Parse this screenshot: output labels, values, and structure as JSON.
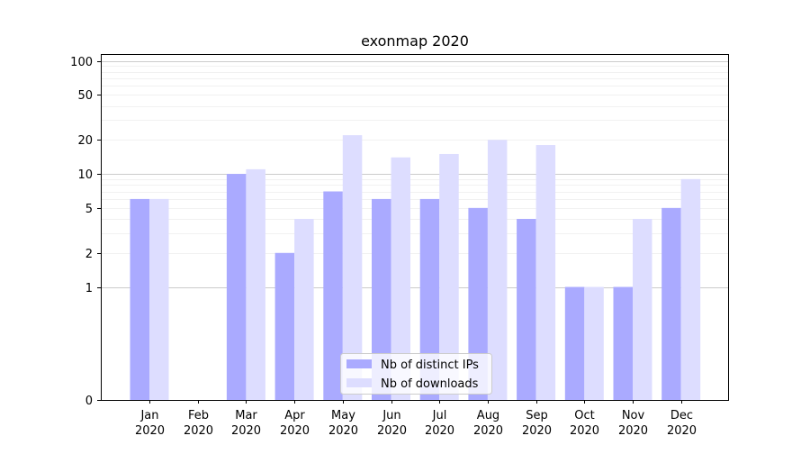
{
  "chart_data": {
    "type": "bar",
    "title": "exonmap 2020",
    "xlabel": "",
    "ylabel": "",
    "scale": "symlog",
    "ylim": [
      0,
      115
    ],
    "grid": true,
    "legend_position": "lower-center",
    "categories": [
      {
        "month": "Jan",
        "year": "2020"
      },
      {
        "month": "Feb",
        "year": "2020"
      },
      {
        "month": "Mar",
        "year": "2020"
      },
      {
        "month": "Apr",
        "year": "2020"
      },
      {
        "month": "May",
        "year": "2020"
      },
      {
        "month": "Jun",
        "year": "2020"
      },
      {
        "month": "Jul",
        "year": "2020"
      },
      {
        "month": "Aug",
        "year": "2020"
      },
      {
        "month": "Sep",
        "year": "2020"
      },
      {
        "month": "Oct",
        "year": "2020"
      },
      {
        "month": "Nov",
        "year": "2020"
      },
      {
        "month": "Dec",
        "year": "2020"
      }
    ],
    "yticks": [
      {
        "value": 0,
        "label": "0"
      },
      {
        "value": 1,
        "label": "1"
      },
      {
        "value": 2,
        "label": "2"
      },
      {
        "value": 5,
        "label": "5"
      },
      {
        "value": 10,
        "label": "10"
      },
      {
        "value": 20,
        "label": "20"
      },
      {
        "value": 50,
        "label": "50"
      },
      {
        "value": 100,
        "label": "100"
      }
    ],
    "series": [
      {
        "name": "Nb of distinct IPs",
        "color": "#aaaaff",
        "values": [
          6,
          0,
          10,
          2,
          7,
          6,
          6,
          5,
          4,
          1,
          1,
          5
        ]
      },
      {
        "name": "Nb of downloads",
        "color": "#ddddff",
        "values": [
          6,
          0,
          11,
          4,
          22,
          14,
          15,
          20,
          18,
          1,
          4,
          9
        ]
      }
    ]
  }
}
